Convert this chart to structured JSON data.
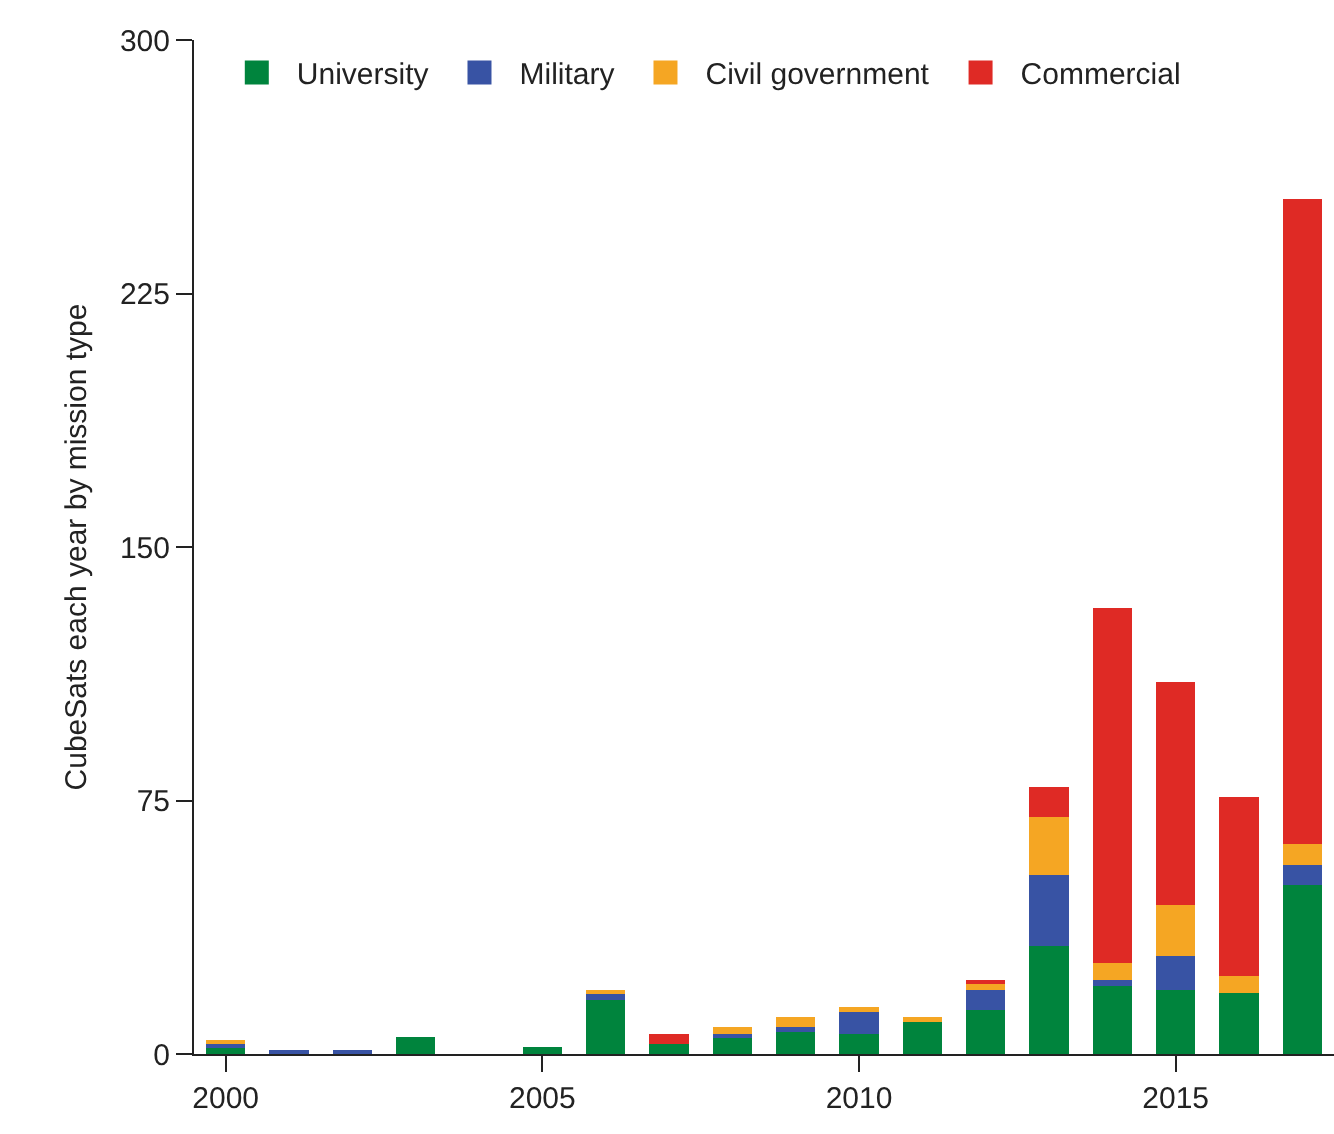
{
  "chart_data": {
    "type": "bar",
    "stacked": true,
    "ylabel": "CubeSats each year by mission type",
    "x": [
      2000,
      2001,
      2002,
      2003,
      2004,
      2005,
      2006,
      2007,
      2008,
      2009,
      2010,
      2011,
      2012,
      2013,
      2014,
      2015,
      2016,
      2017
    ],
    "series": [
      {
        "name": "University",
        "color": "#00843d",
        "values": [
          2,
          0,
          0,
          5,
          0,
          2,
          16,
          3,
          5,
          7,
          6,
          10,
          13,
          32,
          20,
          19,
          18,
          50
        ]
      },
      {
        "name": "Military",
        "color": "#3853a4",
        "values": [
          1,
          1,
          1,
          0,
          0,
          0,
          2,
          0,
          1,
          1,
          7,
          0,
          6,
          21,
          2,
          10,
          0,
          6
        ]
      },
      {
        "name": "Civil government",
        "color": "#f5a623",
        "values": [
          1,
          0,
          0,
          0,
          0,
          0,
          1,
          0,
          2,
          3,
          1,
          1,
          2,
          17,
          5,
          15,
          5,
          6
        ]
      },
      {
        "name": "Commercial",
        "color": "#df2a25",
        "values": [
          0,
          0,
          0,
          0,
          0,
          0,
          0,
          3,
          0,
          0,
          0,
          0,
          1,
          9,
          105,
          66,
          53,
          191
        ]
      }
    ],
    "xlim": [
      1999.5,
      2017.5
    ],
    "xticks": [
      2000,
      2005,
      2010,
      2015
    ],
    "ylim": [
      0,
      300
    ],
    "yticks": [
      0,
      75,
      150,
      225,
      300
    ],
    "grid": false,
    "legend": "top"
  }
}
